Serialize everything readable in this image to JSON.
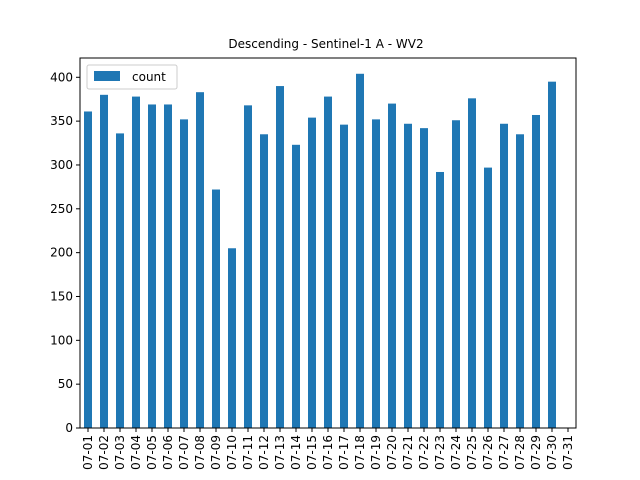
{
  "chart_data": {
    "type": "bar",
    "title": "Descending - Sentinel-1 A - WV2",
    "xlabel": "",
    "ylabel": "",
    "categories": [
      "07-01",
      "07-02",
      "07-03",
      "07-04",
      "07-05",
      "07-06",
      "07-07",
      "07-08",
      "07-09",
      "07-10",
      "07-11",
      "07-12",
      "07-13",
      "07-14",
      "07-15",
      "07-16",
      "07-17",
      "07-18",
      "07-19",
      "07-20",
      "07-21",
      "07-22",
      "07-23",
      "07-24",
      "07-25",
      "07-26",
      "07-27",
      "07-28",
      "07-29",
      "07-30",
      "07-31"
    ],
    "series": [
      {
        "name": "count",
        "color": "#1f77b4",
        "values": [
          361,
          380,
          336,
          378,
          369,
          369,
          352,
          383,
          272,
          205,
          368,
          335,
          390,
          323,
          354,
          378,
          346,
          404,
          352,
          370,
          347,
          342,
          292,
          351,
          376,
          297,
          347,
          335,
          357,
          395,
          0
        ]
      }
    ],
    "ylim": [
      0,
      422
    ],
    "yticks": [
      0,
      50,
      100,
      150,
      200,
      250,
      300,
      350,
      400
    ],
    "grid": false,
    "legend_position": "top-left"
  }
}
